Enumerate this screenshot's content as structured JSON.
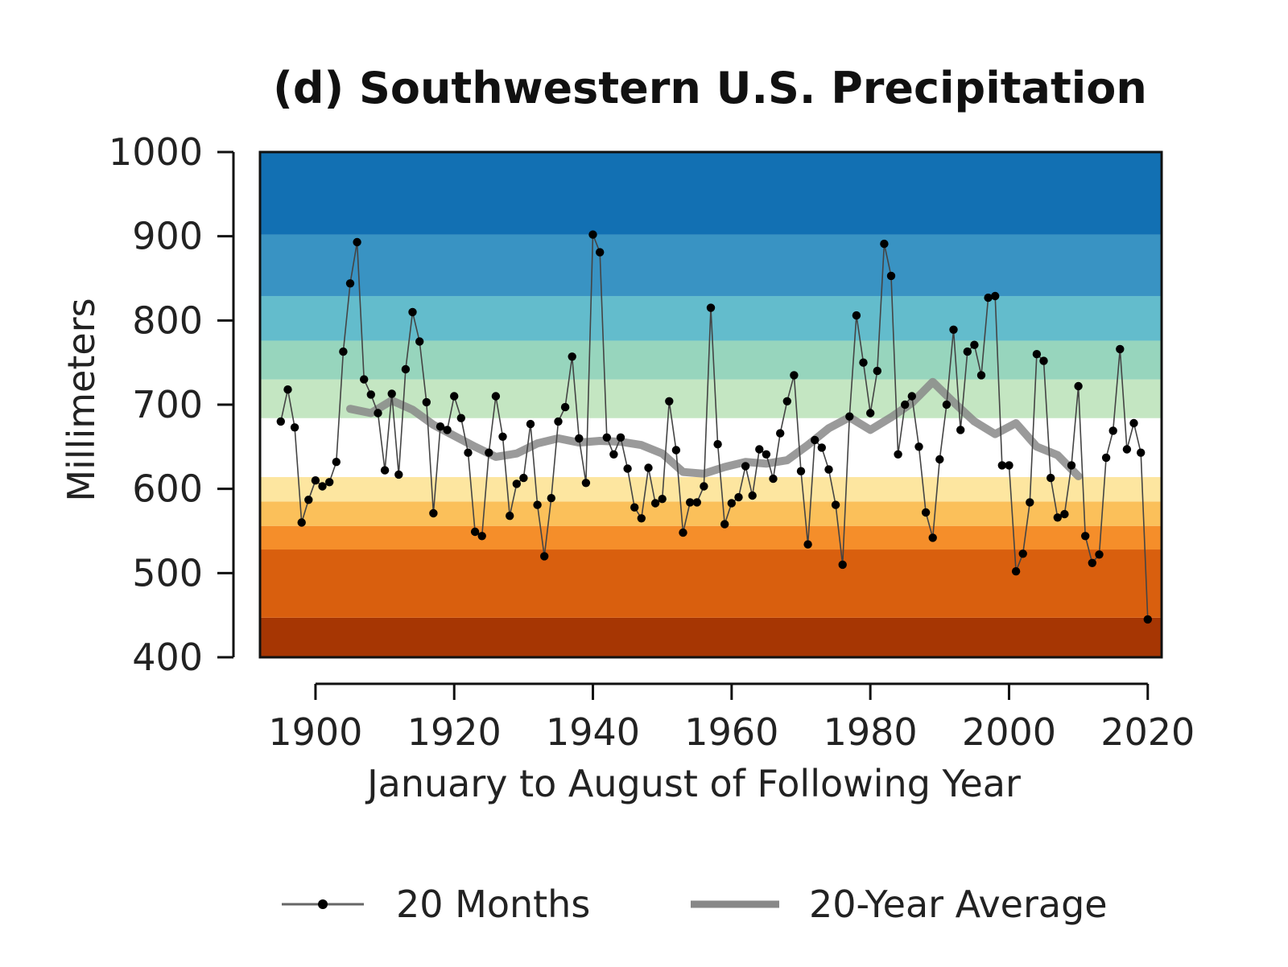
{
  "chart_data": {
    "type": "line",
    "title": "(d) Southwestern U.S. Precipitation",
    "xlabel": "January to August of Following Year",
    "ylabel": "Millimeters",
    "xlim": [
      1892,
      2022
    ],
    "ylim": [
      400,
      1000
    ],
    "x_ticks": [
      1900,
      1920,
      1940,
      1960,
      1980,
      2000,
      2020
    ],
    "y_ticks": [
      400,
      500,
      600,
      700,
      800,
      900,
      1000
    ],
    "legend_position": "bottom",
    "background_bands": [
      {
        "from": 400,
        "to": 447,
        "color": "#a63603"
      },
      {
        "from": 447,
        "to": 528,
        "color": "#d95f0e"
      },
      {
        "from": 528,
        "to": 556,
        "color": "#f58e2a"
      },
      {
        "from": 556,
        "to": 585,
        "color": "#fbc05a"
      },
      {
        "from": 585,
        "to": 614,
        "color": "#fde6a0"
      },
      {
        "from": 614,
        "to": 684,
        "color": "#ffffff"
      },
      {
        "from": 684,
        "to": 730,
        "color": "#c4e6c2"
      },
      {
        "from": 730,
        "to": 776,
        "color": "#97d5bd"
      },
      {
        "from": 776,
        "to": 829,
        "color": "#63bccc"
      },
      {
        "from": 829,
        "to": 902,
        "color": "#3993c3"
      },
      {
        "from": 902,
        "to": 1000,
        "color": "#1270b3"
      }
    ],
    "series": [
      {
        "name": "20 Months",
        "color": "#000000",
        "marker": "dot",
        "x": [
          1895,
          1896,
          1897,
          1898,
          1899,
          1900,
          1901,
          1902,
          1903,
          1904,
          1905,
          1906,
          1907,
          1908,
          1909,
          1910,
          1911,
          1912,
          1913,
          1914,
          1915,
          1916,
          1917,
          1918,
          1919,
          1920,
          1921,
          1922,
          1923,
          1924,
          1925,
          1926,
          1927,
          1928,
          1929,
          1930,
          1931,
          1932,
          1933,
          1934,
          1935,
          1936,
          1937,
          1938,
          1939,
          1940,
          1941,
          1942,
          1943,
          1944,
          1945,
          1946,
          1947,
          1948,
          1949,
          1950,
          1951,
          1952,
          1953,
          1954,
          1955,
          1956,
          1957,
          1958,
          1959,
          1960,
          1961,
          1962,
          1963,
          1964,
          1965,
          1966,
          1967,
          1968,
          1969,
          1970,
          1971,
          1972,
          1973,
          1974,
          1975,
          1976,
          1977,
          1978,
          1979,
          1980,
          1981,
          1982,
          1983,
          1984,
          1985,
          1986,
          1987,
          1988,
          1989,
          1990,
          1991,
          1992,
          1993,
          1994,
          1995,
          1996,
          1997,
          1998,
          1999,
          2000,
          2001,
          2002,
          2003,
          2004,
          2005,
          2006,
          2007,
          2008,
          2009,
          2010,
          2011,
          2012,
          2013,
          2014,
          2015,
          2016,
          2017,
          2018,
          2019,
          2020
        ],
        "values": [
          680,
          718,
          673,
          560,
          587,
          610,
          603,
          608,
          632,
          763,
          844,
          893,
          730,
          712,
          690,
          622,
          713,
          617,
          742,
          810,
          775,
          703,
          571,
          674,
          670,
          710,
          684,
          643,
          549,
          544,
          643,
          710,
          662,
          568,
          606,
          613,
          677,
          581,
          520,
          589,
          680,
          697,
          757,
          660,
          607,
          902,
          881,
          661,
          641,
          661,
          624,
          578,
          565,
          625,
          583,
          588,
          704,
          646,
          548,
          584,
          584,
          603,
          815,
          653,
          558,
          583,
          590,
          627,
          592,
          647,
          641,
          612,
          666,
          704,
          735,
          621,
          534,
          658,
          649,
          623,
          581,
          510,
          686,
          806,
          750,
          690,
          740,
          891,
          853,
          641,
          700,
          710,
          650,
          572,
          542,
          635,
          700,
          789,
          670,
          763,
          771,
          735,
          827,
          829,
          628,
          628,
          502,
          523,
          584,
          760,
          752,
          613,
          566,
          570,
          628,
          722,
          544,
          512,
          522,
          637,
          669,
          766,
          647,
          678,
          643,
          445
        ]
      },
      {
        "name": "20-Year Average",
        "color": "#888888",
        "x": [
          1905,
          1908,
          1911,
          1914,
          1917,
          1920,
          1923,
          1926,
          1929,
          1932,
          1935,
          1938,
          1941,
          1944,
          1947,
          1950,
          1953,
          1956,
          1959,
          1962,
          1965,
          1968,
          1971,
          1974,
          1977,
          1980,
          1983,
          1986,
          1989,
          1992,
          1995,
          1998,
          2001,
          2004,
          2007,
          2010
        ],
        "values": [
          695,
          690,
          705,
          694,
          676,
          663,
          650,
          638,
          642,
          654,
          660,
          655,
          657,
          656,
          652,
          642,
          620,
          618,
          626,
          632,
          630,
          634,
          652,
          672,
          685,
          670,
          685,
          702,
          727,
          703,
          680,
          665,
          678,
          650,
          640,
          615
        ]
      }
    ]
  }
}
